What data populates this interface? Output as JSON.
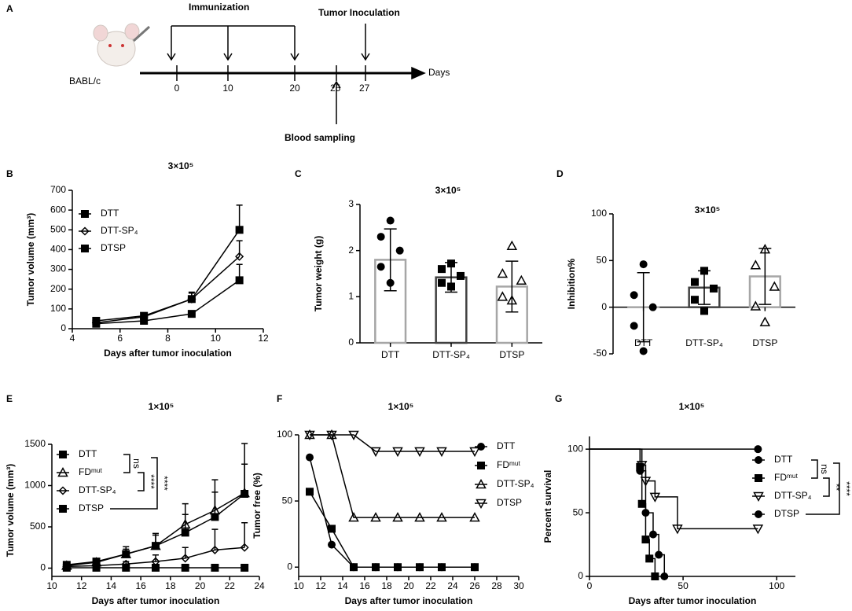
{
  "timeline": {
    "panel": "A",
    "strain": "BABL/c",
    "axis_label": "Days",
    "days": [
      0,
      10,
      20,
      25,
      27
    ],
    "immunization": "Immunization",
    "tumor": "Tumor Inoculation",
    "blood": "Blood sampling"
  },
  "chart_data": [
    {
      "type": "line",
      "panel": "B",
      "title": "3×10⁵",
      "xlabel": "Days after tumor inoculation",
      "ylabel": "Tumor volume (mm³)",
      "x": [
        5,
        7,
        9,
        11
      ],
      "xlim": [
        4,
        12
      ],
      "xticks": [
        4,
        6,
        8,
        10,
        12
      ],
      "ylim": [
        0,
        700
      ],
      "yticks": [
        0,
        100,
        200,
        300,
        400,
        500,
        600,
        700
      ],
      "legend": "upper left",
      "series": [
        {
          "name": "DTT",
          "marker": "square",
          "color": "#000000",
          "values": [
            40,
            65,
            150,
            500
          ],
          "errors": [
            10,
            10,
            35,
            125
          ]
        },
        {
          "name": "DTT-SP₄",
          "marker": "diamond",
          "color": "#000000",
          "values": [
            30,
            60,
            150,
            365
          ],
          "errors": [
            8,
            10,
            30,
            80
          ]
        },
        {
          "name": "DTSP",
          "marker": "square",
          "color": "#000000",
          "values": [
            25,
            40,
            75,
            245
          ],
          "errors": [
            5,
            8,
            15,
            80
          ]
        }
      ]
    },
    {
      "type": "bar",
      "panel": "C",
      "title": "3×10⁵",
      "ylabel": "Tumor weight (g)",
      "categories": [
        "DTT",
        "DTT-SP₄",
        "DTSP"
      ],
      "values": [
        1.8,
        1.42,
        1.22
      ],
      "errors": [
        0.67,
        0.32,
        0.55
      ],
      "colors": [
        "#a6a6a6",
        "#404040",
        "#a6a6a6"
      ],
      "markers": [
        "circle",
        "square",
        "triangle"
      ],
      "points": [
        [
          2.65,
          2.3,
          2.0,
          1.65,
          1.3
        ],
        [
          1.72,
          1.6,
          1.45,
          1.3,
          1.22
        ],
        [
          2.1,
          1.5,
          1.35,
          1.0,
          0.92
        ]
      ],
      "ylim": [
        0,
        3
      ],
      "yticks": [
        0,
        1,
        2,
        3
      ]
    },
    {
      "type": "bar",
      "panel": "D",
      "title": "3×10⁵",
      "ylabel": "Inhibition%",
      "categories": [
        "DTT",
        "DTT-SP₄",
        "DTSP"
      ],
      "values": [
        0,
        21,
        33
      ],
      "errors": [
        37,
        18,
        30
      ],
      "colors": [
        "#a6a6a6",
        "#404040",
        "#a6a6a6"
      ],
      "markers": [
        "circle",
        "square",
        "triangle"
      ],
      "points": [
        [
          46,
          13,
          0,
          -20,
          -47
        ],
        [
          39,
          27,
          20,
          8,
          -4
        ],
        [
          62,
          45,
          22,
          1,
          -16
        ]
      ],
      "ylim": [
        -50,
        100
      ],
      "yticks": [
        -50,
        0,
        50,
        100
      ]
    },
    {
      "type": "line",
      "panel": "E",
      "title": "1×10⁵",
      "xlabel": "Days after tumor inoculation",
      "ylabel": "Tumor volume (mm³)",
      "x": [
        11,
        13,
        15,
        17,
        19,
        21,
        23
      ],
      "xlim": [
        10,
        24
      ],
      "xticks": [
        10,
        12,
        14,
        16,
        18,
        20,
        22,
        24
      ],
      "ylim": [
        -100,
        1500
      ],
      "yticks": [
        0,
        500,
        1000,
        1500
      ],
      "legend": "upper left",
      "annotations": [
        "ns",
        "****",
        "****"
      ],
      "series": [
        {
          "name": "DTT",
          "marker": "square",
          "color": "#000000",
          "values": [
            40,
            80,
            170,
            270,
            430,
            620,
            900
          ],
          "errors": [
            15,
            20,
            60,
            130,
            220,
            300,
            360
          ]
        },
        {
          "name": "FDᵐᵘᵗ",
          "marker": "triangle",
          "color": "#000000",
          "values": [
            30,
            70,
            170,
            270,
            530,
            700,
            910
          ],
          "errors": [
            15,
            25,
            90,
            150,
            250,
            370,
            600
          ]
        },
        {
          "name": "DTT-SP₄",
          "marker": "diamond",
          "color": "#000000",
          "values": [
            20,
            30,
            50,
            80,
            120,
            220,
            250
          ],
          "errors": [
            5,
            10,
            30,
            80,
            130,
            250,
            300
          ]
        },
        {
          "name": "DTSP",
          "marker": "square",
          "color": "#000000",
          "values": [
            5,
            5,
            5,
            5,
            5,
            5,
            5
          ]
        }
      ]
    },
    {
      "type": "line",
      "panel": "F",
      "title": "1×10⁵",
      "xlabel": "Days after tumor inoculation",
      "ylabel": "Tumor free (%)",
      "x": [
        11,
        13,
        15,
        17,
        19,
        21,
        23,
        26
      ],
      "xlim": [
        10,
        30
      ],
      "xticks": [
        10,
        12,
        14,
        16,
        18,
        20,
        22,
        24,
        26,
        28,
        30
      ],
      "ylim": [
        -7,
        100
      ],
      "yticks": [
        0,
        50,
        100
      ],
      "legend": "right",
      "series": [
        {
          "name": "DTT",
          "marker": "circle",
          "color": "#000000",
          "values": [
            83,
            17,
            0,
            0,
            0,
            0,
            0,
            0
          ]
        },
        {
          "name": "FDᵐᵘᵗ",
          "marker": "square",
          "color": "#000000",
          "values": [
            57,
            29,
            0,
            0,
            0,
            0,
            0,
            0
          ]
        },
        {
          "name": "DTT-SP₄",
          "marker": "triangle",
          "color": "#000000",
          "values": [
            100,
            100,
            37.5,
            37.5,
            37.5,
            37.5,
            37.5,
            37.5
          ]
        },
        {
          "name": "DTSP",
          "marker": "triangle-down",
          "color": "#000000",
          "values": [
            100,
            100,
            100,
            87.5,
            87.5,
            87.5,
            87.5,
            87.5
          ]
        }
      ]
    },
    {
      "type": "step",
      "panel": "G",
      "title": "1×10⁵",
      "xlabel": "Days after tumor inoculation",
      "ylabel": "Percent survival",
      "xlim": [
        0,
        110
      ],
      "xticks": [
        0,
        50,
        100
      ],
      "ylim": [
        0,
        110
      ],
      "yticks": [
        0,
        50,
        100
      ],
      "legend": "right",
      "annotations": [
        "ns",
        "**",
        "****"
      ],
      "series": [
        {
          "name": "DTT",
          "marker": "circle",
          "color": "#000000",
          "x": [
            0,
            90
          ],
          "values": [
            100,
            100
          ]
        },
        {
          "name": "FDᵐᵘᵗ",
          "marker": "square",
          "color": "#000000",
          "x": [
            0,
            27,
            28,
            30,
            32,
            35
          ],
          "values": [
            100,
            86,
            57,
            29,
            14,
            0
          ]
        },
        {
          "name": "DTT-SP₄",
          "marker": "triangle-down",
          "color": "#000000",
          "x": [
            0,
            28,
            30,
            35,
            47,
            90
          ],
          "values": [
            100,
            87.5,
            75,
            62.5,
            37.5,
            37.5
          ]
        },
        {
          "name": "DTSP",
          "marker": "circle",
          "color": "#000000",
          "x": [
            0,
            27,
            30,
            34,
            37,
            40
          ],
          "values": [
            100,
            83,
            50,
            33,
            17,
            0
          ]
        }
      ]
    }
  ]
}
